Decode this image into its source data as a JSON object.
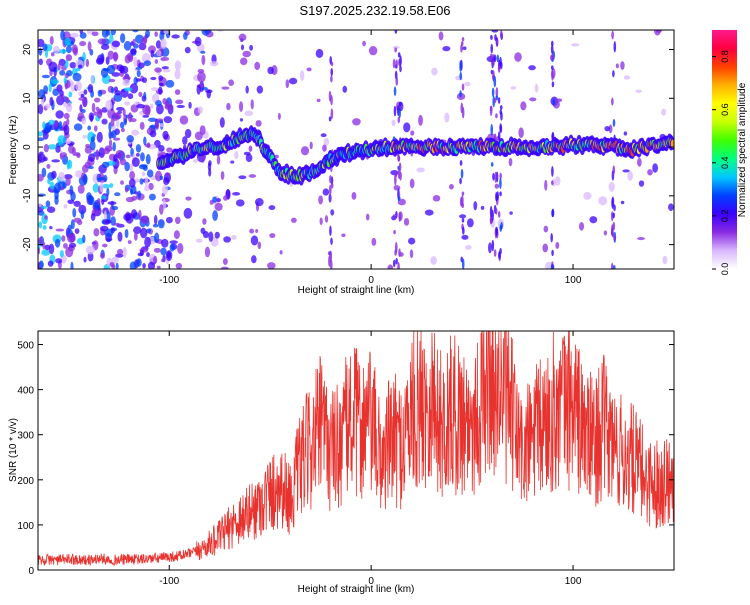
{
  "title": "S197.2025.232.19.58.E06",
  "chart_data": [
    {
      "type": "heatmap",
      "name": "spectrogram",
      "xlabel": "Height of straight line (km)",
      "ylabel": "Frequency (Hz)",
      "xlim": [
        -165,
        150
      ],
      "ylim": [
        -25,
        24
      ],
      "x_ticks": [
        -100,
        0,
        100
      ],
      "x_tick_labels": [
        "-100",
        "0",
        "100"
      ],
      "y_ticks": [
        20,
        10,
        0,
        -10,
        -20
      ],
      "y_tick_labels": [
        "20",
        "10",
        "0",
        "-10",
        "-20"
      ],
      "colorbar": {
        "label": "Normalized spectral amplitude",
        "range": [
          0.0,
          0.9
        ],
        "ticks": [
          0.0,
          0.2,
          0.4,
          0.6,
          0.8
        ],
        "tick_labels": [
          "0.0",
          "0.2",
          "0.4",
          "0.6",
          "0.8"
        ],
        "colors": [
          "#ffffff",
          "#d9b8ff",
          "#8a2be2",
          "#3b00ff",
          "#0040ff",
          "#00c8ff",
          "#00ff80",
          "#40ff00",
          "#c8ff00",
          "#ffff00",
          "#ffb000",
          "#ff4000",
          "#ff0040",
          "#ff1a8c"
        ]
      },
      "signal_track": [
        {
          "x": -105,
          "f": -3.5
        },
        {
          "x": -95,
          "f": -2
        },
        {
          "x": -85,
          "f": 0
        },
        {
          "x": -75,
          "f": 0
        },
        {
          "x": -65,
          "f": 2
        },
        {
          "x": -58,
          "f": 3
        },
        {
          "x": -52,
          "f": -1
        },
        {
          "x": -45,
          "f": -5
        },
        {
          "x": -38,
          "f": -6
        },
        {
          "x": -30,
          "f": -5.5
        },
        {
          "x": -22,
          "f": -3
        },
        {
          "x": -15,
          "f": -1.5
        },
        {
          "x": -8,
          "f": -1
        },
        {
          "x": 0,
          "f": -0.5
        },
        {
          "x": 8,
          "f": 0
        },
        {
          "x": 15,
          "f": 0
        },
        {
          "x": 25,
          "f": 0
        },
        {
          "x": 35,
          "f": 0
        },
        {
          "x": 45,
          "f": 0
        },
        {
          "x": 55,
          "f": 0
        },
        {
          "x": 60,
          "f": 0
        },
        {
          "x": 70,
          "f": 0
        },
        {
          "x": 80,
          "f": 0
        },
        {
          "x": 90,
          "f": 0
        },
        {
          "x": 100,
          "f": 0.5
        },
        {
          "x": 110,
          "f": 0.5
        },
        {
          "x": 120,
          "f": 0
        },
        {
          "x": 130,
          "f": -0.5
        },
        {
          "x": 140,
          "f": 0.5
        },
        {
          "x": 150,
          "f": 1
        }
      ]
    },
    {
      "type": "line",
      "name": "snr",
      "xlabel": "Height of straight line (km)",
      "ylabel": "SNR (10 * v/v)",
      "xlim": [
        -165,
        150
      ],
      "ylim": [
        0,
        530
      ],
      "x_ticks": [
        -100,
        0,
        100
      ],
      "x_tick_labels": [
        "-100",
        "0",
        "100"
      ],
      "y_ticks": [
        0,
        100,
        200,
        300,
        400,
        500
      ],
      "y_tick_labels": [
        "0",
        "100",
        "200",
        "300",
        "400",
        "500"
      ],
      "color": "#e8322e",
      "series": [
        {
          "name": "SNR",
          "x": [
            -165,
            -160,
            -155,
            -150,
            -145,
            -140,
            -135,
            -130,
            -125,
            -120,
            -115,
            -110,
            -105,
            -100,
            -95,
            -90,
            -85,
            -80,
            -75,
            -70,
            -65,
            -60,
            -55,
            -50,
            -45,
            -40,
            -35,
            -30,
            -25,
            -20,
            -15,
            -10,
            -5,
            0,
            5,
            10,
            15,
            20,
            25,
            30,
            35,
            40,
            45,
            50,
            55,
            60,
            65,
            70,
            75,
            80,
            85,
            90,
            95,
            100,
            105,
            110,
            115,
            120,
            125,
            130,
            135,
            140,
            145,
            150
          ],
          "y": [
            20,
            22,
            21,
            23,
            22,
            20,
            24,
            22,
            21,
            23,
            22,
            24,
            25,
            28,
            30,
            35,
            42,
            55,
            70,
            90,
            110,
            120,
            140,
            160,
            180,
            150,
            220,
            260,
            300,
            250,
            270,
            320,
            300,
            310,
            230,
            280,
            260,
            330,
            350,
            360,
            300,
            330,
            320,
            310,
            360,
            420,
            380,
            320,
            240,
            280,
            300,
            330,
            340,
            350,
            290,
            270,
            300,
            260,
            240,
            230,
            200,
            180,
            190,
            200
          ]
        }
      ]
    }
  ]
}
